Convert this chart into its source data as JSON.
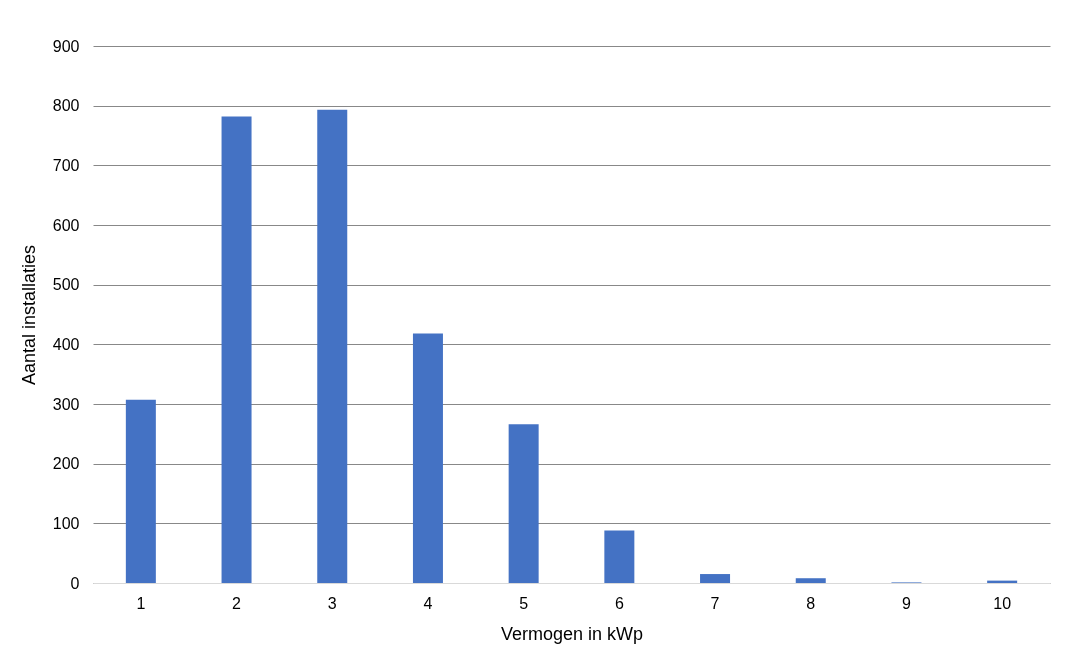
{
  "chart_data": {
    "type": "bar",
    "xlabel": "Vermogen in kWp",
    "ylabel": "Aantal installaties",
    "categories": [
      "1",
      "2",
      "3",
      "4",
      "5",
      "6",
      "7",
      "8",
      "9",
      "10"
    ],
    "values": [
      307,
      782,
      793,
      418,
      266,
      88,
      15,
      8,
      1,
      4
    ],
    "color": "#4472c4",
    "ylim": [
      0,
      900
    ],
    "yticks": [
      0,
      100,
      200,
      300,
      400,
      500,
      600,
      700,
      800,
      900
    ],
    "grid": "y"
  }
}
